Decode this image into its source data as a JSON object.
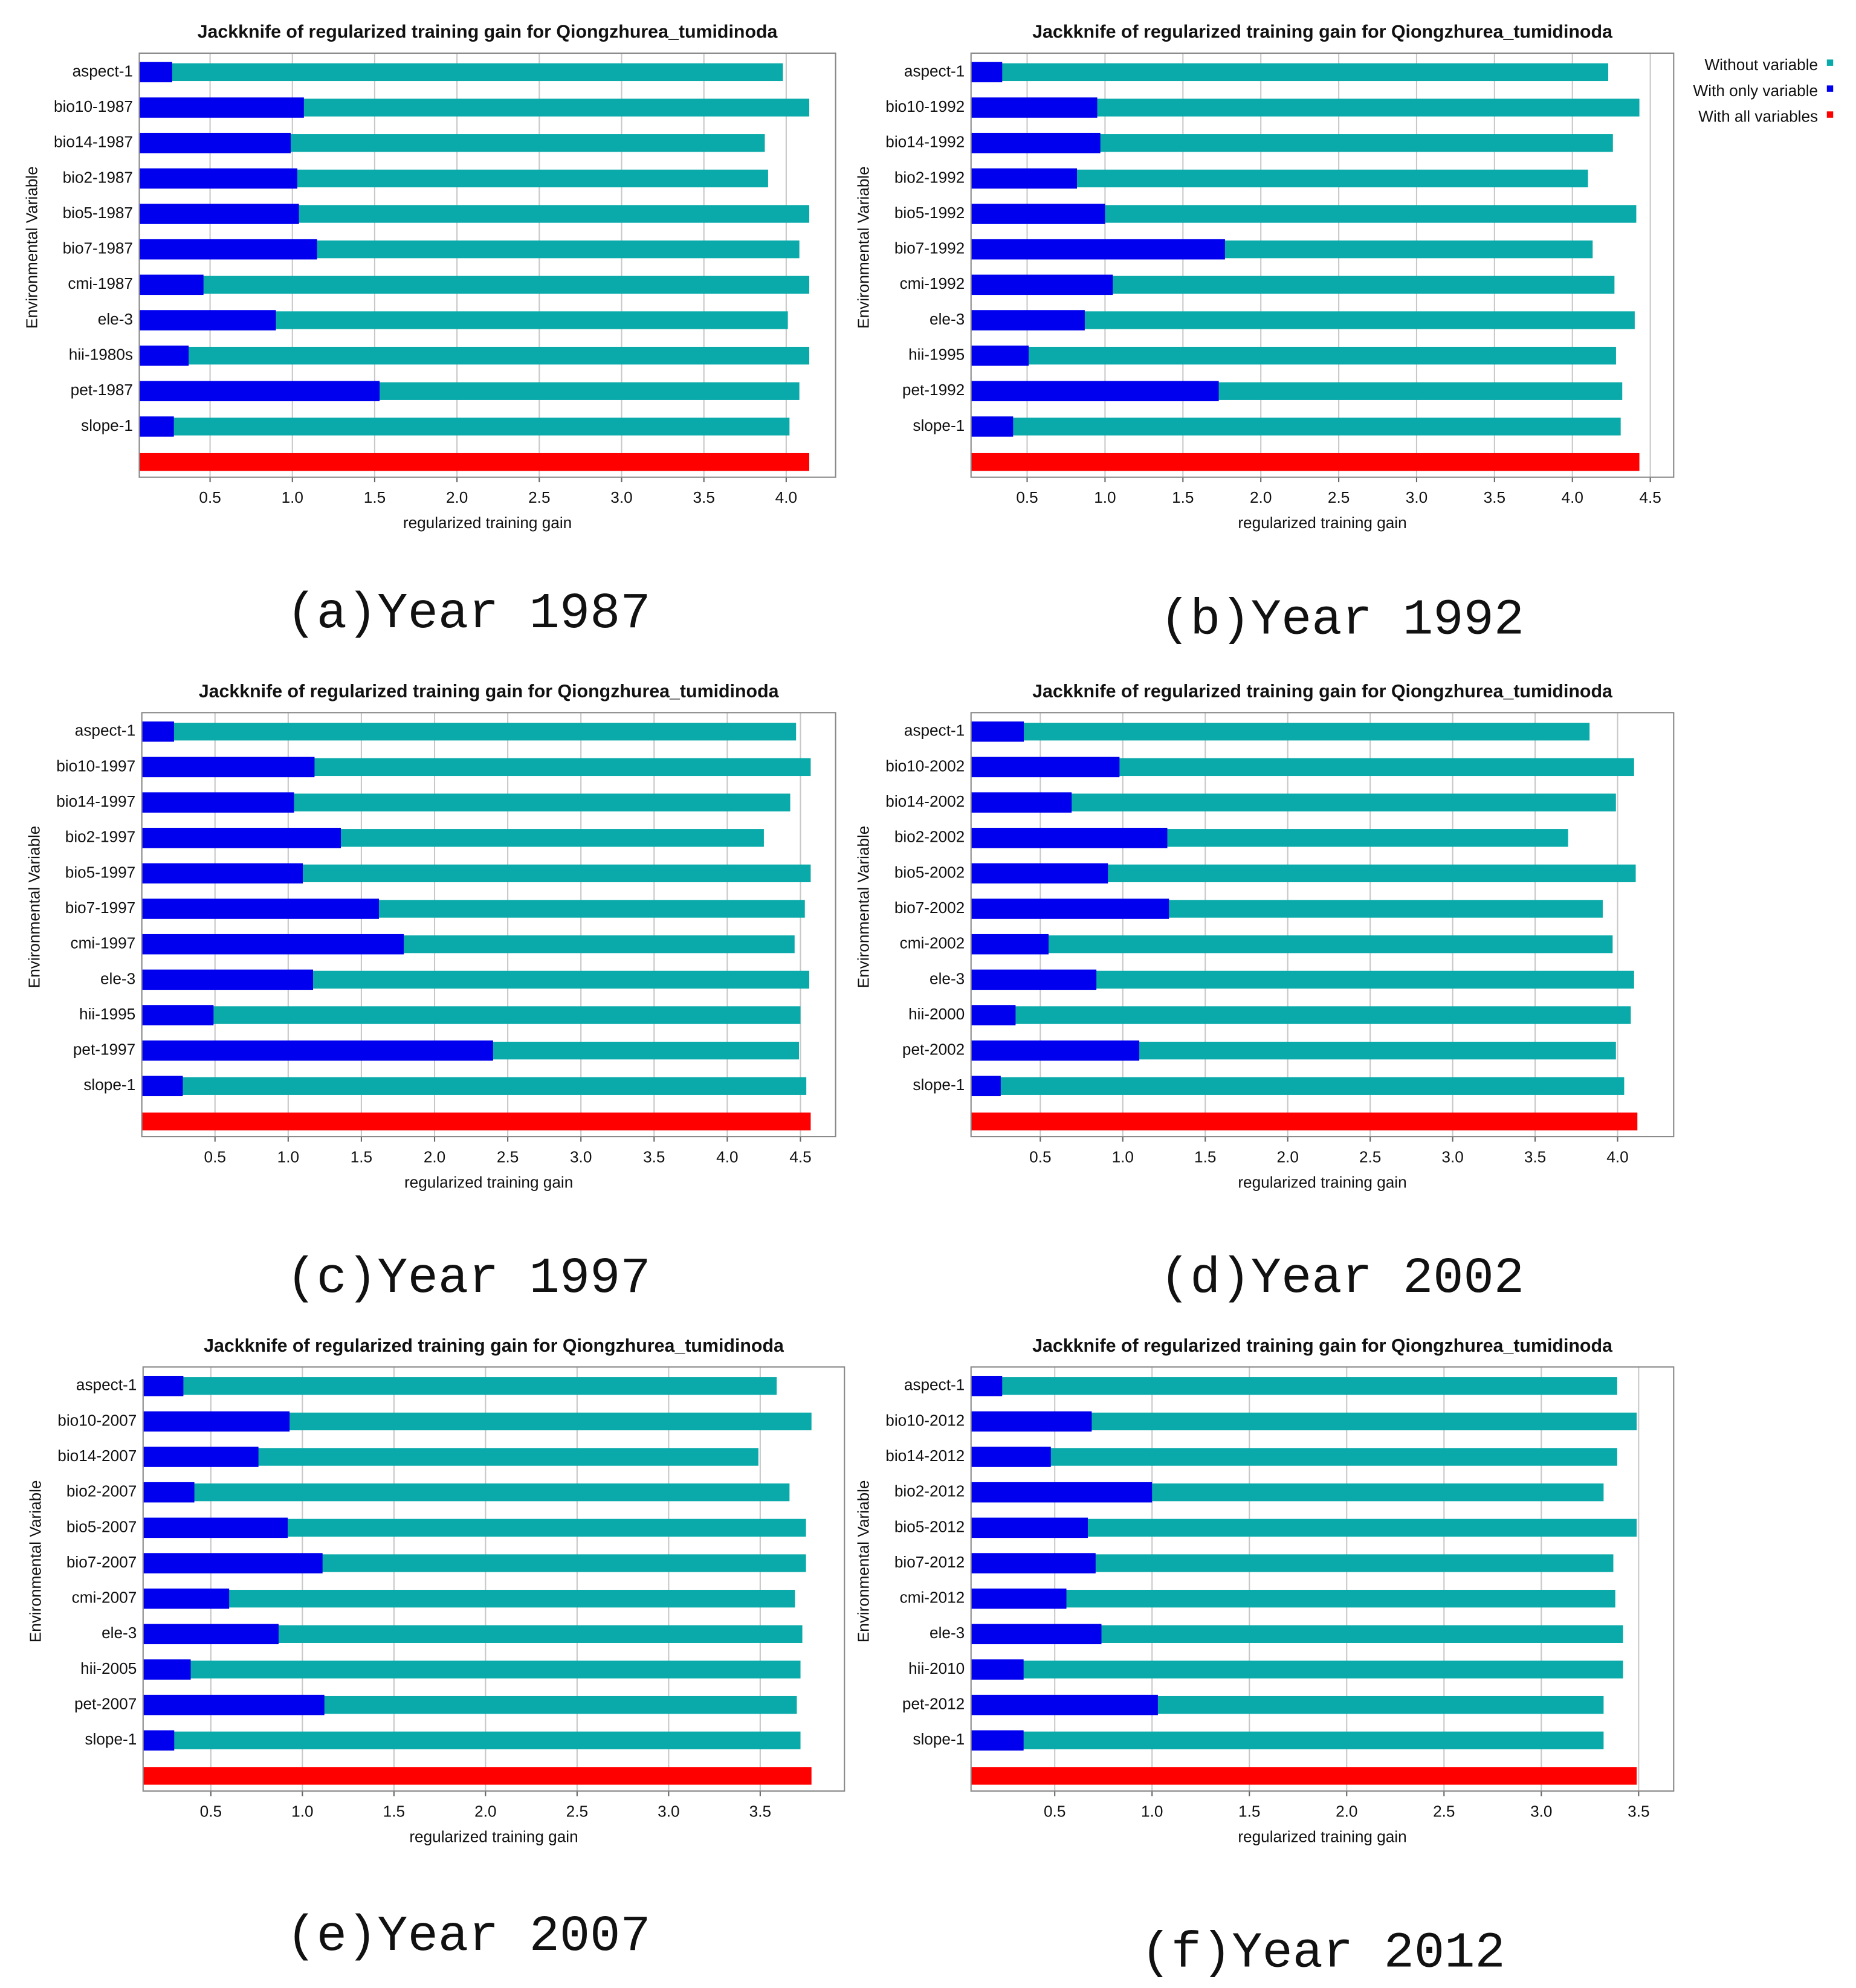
{
  "chart_data": [
    {
      "type": "bar",
      "orientation": "horizontal",
      "title": "Jackknife of regularized training gain for Qiongzhurea_tumidinoda",
      "caption": "(a)Year 1987",
      "xlabel": "regularized training gain",
      "ylabel": "Environmental Variable",
      "categories": [
        "aspect-1",
        "bio10-1987",
        "bio14-1987",
        "bio2-1987",
        "bio5-1987",
        "bio7-1987",
        "cmi-1987",
        "ele-3",
        "hii-1980s",
        "pet-1987",
        "slope-1",
        null
      ],
      "series": [
        {
          "name": "Without variable",
          "color": "#0aaaaa",
          "values": [
            3.98,
            4.14,
            3.87,
            3.89,
            4.14,
            4.08,
            4.14,
            4.01,
            4.14,
            4.08,
            4.02,
            null
          ]
        },
        {
          "name": "With only variable",
          "color": "#0000ee",
          "values": [
            0.27,
            1.07,
            0.99,
            1.03,
            1.04,
            1.15,
            0.46,
            0.9,
            0.37,
            1.53,
            0.28,
            null
          ]
        },
        {
          "name": "With all variables",
          "color": "#ff0000",
          "values": [
            null,
            null,
            null,
            null,
            null,
            null,
            null,
            null,
            null,
            null,
            null,
            4.14
          ]
        }
      ],
      "xlim": [
        0.07,
        4.3
      ],
      "xticks": [
        0.5,
        {
          "value": 1,
          "label": "1.0"
        },
        1.5,
        {
          "value": 2,
          "label": "2.0"
        },
        2.5,
        {
          "value": 3,
          "label": "3.0"
        },
        3.5,
        {
          "value": 4,
          "label": "4.0"
        }
      ],
      "grid": true
    },
    {
      "type": "bar",
      "orientation": "horizontal",
      "title": "Jackknife of regularized training gain for Qiongzhurea_tumidinoda",
      "caption": "(b)Year 1992",
      "xlabel": "regularized training gain",
      "ylabel": "Environmental Variable",
      "legend": "right",
      "categories": [
        "aspect-1",
        "bio10-1992",
        "bio14-1992",
        "bio2-1992",
        "bio5-1992",
        "bio7-1992",
        "cmi-1992",
        "ele-3",
        "hii-1995",
        "pet-1992",
        "slope-1",
        null
      ],
      "series": [
        {
          "name": "Without variable",
          "color": "#0aaaaa",
          "values": [
            4.23,
            4.43,
            4.26,
            4.1,
            4.41,
            4.13,
            4.27,
            4.4,
            4.28,
            4.32,
            4.31,
            null
          ]
        },
        {
          "name": "With only variable",
          "color": "#0000ee",
          "values": [
            0.34,
            0.95,
            0.97,
            0.82,
            1.0,
            1.77,
            1.05,
            0.87,
            0.51,
            1.73,
            0.41,
            null
          ]
        },
        {
          "name": "With all variables",
          "color": "#ff0000",
          "values": [
            null,
            null,
            null,
            null,
            null,
            null,
            null,
            null,
            null,
            null,
            null,
            4.43
          ]
        }
      ],
      "xlim": [
        0.14,
        4.65
      ],
      "xticks": [
        0.5,
        {
          "value": 1,
          "label": "1.0"
        },
        1.5,
        {
          "value": 2,
          "label": "2.0"
        },
        2.5,
        {
          "value": 3,
          "label": "3.0"
        },
        3.5,
        {
          "value": 4,
          "label": "4.0"
        },
        4.5
      ],
      "grid": true
    },
    {
      "type": "bar",
      "orientation": "horizontal",
      "title": "Jackknife of regularized training gain for Qiongzhurea_tumidinoda",
      "caption": "(c)Year 1997",
      "xlabel": "regularized training gain",
      "ylabel": "Environmental Variable",
      "categories": [
        "aspect-1",
        "bio10-1997",
        "bio14-1997",
        "bio2-1997",
        "bio5-1997",
        "bio7-1997",
        "cmi-1997",
        "ele-3",
        "hii-1995",
        "pet-1997",
        "slope-1",
        null
      ],
      "series": [
        {
          "name": "Without variable",
          "color": "#0aaaaa",
          "values": [
            4.47,
            4.57,
            4.43,
            4.25,
            4.57,
            4.53,
            4.46,
            4.56,
            4.5,
            4.49,
            4.54,
            null
          ]
        },
        {
          "name": "With only variable",
          "color": "#0000ee",
          "values": [
            0.22,
            1.18,
            1.04,
            1.36,
            1.1,
            1.62,
            1.79,
            1.17,
            0.49,
            2.4,
            0.28,
            null
          ]
        },
        {
          "name": "With all variables",
          "color": "#ff0000",
          "values": [
            null,
            null,
            null,
            null,
            null,
            null,
            null,
            null,
            null,
            null,
            null,
            4.57
          ]
        }
      ],
      "xlim": [
        0,
        4.74
      ],
      "xticks": [
        0.5,
        {
          "value": 1,
          "label": "1.0"
        },
        1.5,
        {
          "value": 2,
          "label": "2.0"
        },
        2.5,
        {
          "value": 3,
          "label": "3.0"
        },
        3.5,
        {
          "value": 4,
          "label": "4.0"
        },
        4.5
      ],
      "grid": true
    },
    {
      "type": "bar",
      "orientation": "horizontal",
      "title": "Jackknife of regularized training gain for Qiongzhurea_tumidinoda",
      "caption": "(d)Year 2002",
      "xlabel": "regularized training gain",
      "ylabel": "Environmental Variable",
      "categories": [
        "aspect-1",
        "bio10-2002",
        "bio14-2002",
        "bio2-2002",
        "bio5-2002",
        "bio7-2002",
        "cmi-2002",
        "ele-3",
        "hii-2000",
        "pet-2002",
        "slope-1",
        null
      ],
      "series": [
        {
          "name": "Without variable",
          "color": "#0aaaaa",
          "values": [
            3.83,
            4.1,
            3.99,
            3.7,
            4.11,
            3.91,
            3.97,
            4.1,
            4.08,
            3.99,
            4.04,
            null
          ]
        },
        {
          "name": "With only variable",
          "color": "#0000ee",
          "values": [
            0.4,
            0.98,
            0.69,
            1.27,
            0.91,
            1.28,
            0.55,
            0.84,
            0.35,
            1.1,
            0.26,
            null
          ]
        },
        {
          "name": "With all variables",
          "color": "#ff0000",
          "values": [
            null,
            null,
            null,
            null,
            null,
            null,
            null,
            null,
            null,
            null,
            null,
            4.12
          ]
        }
      ],
      "xlim": [
        0.08,
        4.34
      ],
      "xticks": [
        0.5,
        {
          "value": 1,
          "label": "1.0"
        },
        1.5,
        {
          "value": 2,
          "label": "2.0"
        },
        2.5,
        {
          "value": 3,
          "label": "3.0"
        },
        3.5,
        {
          "value": 4,
          "label": "4.0"
        }
      ],
      "grid": true
    },
    {
      "type": "bar",
      "orientation": "horizontal",
      "title": "Jackknife of regularized training gain for Qiongzhurea_tumidinoda",
      "caption": "(e)Year 2007",
      "xlabel": "regularized training gain",
      "ylabel": "Environmental Variable",
      "categories": [
        "aspect-1",
        "bio10-2007",
        "bio14-2007",
        "bio2-2007",
        "bio5-2007",
        "bio7-2007",
        "cmi-2007",
        "ele-3",
        "hii-2005",
        "pet-2007",
        "slope-1",
        null
      ],
      "series": [
        {
          "name": "Without variable",
          "color": "#0aaaaa",
          "values": [
            3.59,
            3.78,
            3.49,
            3.66,
            3.75,
            3.75,
            3.69,
            3.73,
            3.72,
            3.7,
            3.72,
            null
          ]
        },
        {
          "name": "With only variable",
          "color": "#0000ee",
          "values": [
            0.35,
            0.93,
            0.76,
            0.41,
            0.92,
            1.11,
            0.6,
            0.87,
            0.39,
            1.12,
            0.3,
            null
          ]
        },
        {
          "name": "With all variables",
          "color": "#ff0000",
          "values": [
            null,
            null,
            null,
            null,
            null,
            null,
            null,
            null,
            null,
            null,
            null,
            3.78
          ]
        }
      ],
      "xlim": [
        0.13,
        3.96
      ],
      "xticks": [
        0.5,
        {
          "value": 1,
          "label": "1.0"
        },
        1.5,
        {
          "value": 2,
          "label": "2.0"
        },
        2.5,
        {
          "value": 3,
          "label": "3.0"
        },
        3.5
      ],
      "grid": true
    },
    {
      "type": "bar",
      "orientation": "horizontal",
      "title": "Jackknife of regularized training gain for Qiongzhurea_tumidinoda",
      "caption": "(f)Year 2012",
      "xlabel": "regularized training gain",
      "ylabel": "Environmental Variable",
      "categories": [
        "aspect-1",
        "bio10-2012",
        "bio14-2012",
        "bio2-2012",
        "bio5-2012",
        "bio7-2012",
        "cmi-2012",
        "ele-3",
        "hii-2010",
        "pet-2012",
        "slope-1",
        null
      ],
      "series": [
        {
          "name": "Without variable",
          "color": "#0aaaaa",
          "values": [
            3.39,
            3.49,
            3.39,
            3.32,
            3.49,
            3.37,
            3.38,
            3.42,
            3.42,
            3.32,
            3.32,
            null
          ]
        },
        {
          "name": "With only variable",
          "color": "#0000ee",
          "values": [
            0.23,
            0.69,
            0.48,
            1.0,
            0.67,
            0.71,
            0.56,
            0.74,
            0.34,
            1.03,
            0.34,
            null
          ]
        },
        {
          "name": "With all variables",
          "color": "#ff0000",
          "values": [
            null,
            null,
            null,
            null,
            null,
            null,
            null,
            null,
            null,
            null,
            null,
            3.49
          ]
        }
      ],
      "xlim": [
        0.07,
        3.68
      ],
      "xticks": [
        0.5,
        {
          "value": 1,
          "label": "1.0"
        },
        1.5,
        {
          "value": 2,
          "label": "2.0"
        },
        2.5,
        {
          "value": 3,
          "label": "3.0"
        },
        3.5
      ],
      "grid": true
    }
  ]
}
